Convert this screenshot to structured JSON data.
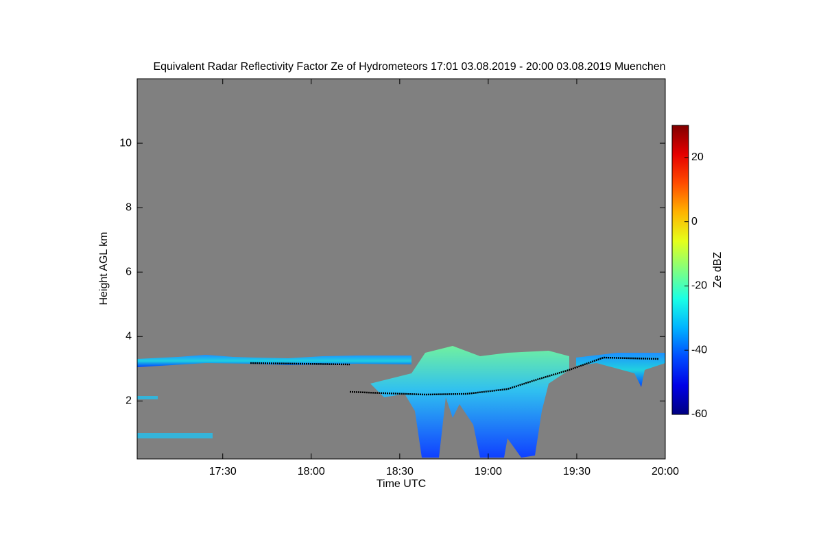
{
  "chart_data": {
    "type": "heatmap",
    "title": "Equivalent Radar Reflectivity Factor Ze of Hydrometeors   17:01 03.08.2019 - 20:00 03.08.2019 Muenchen",
    "x_label": "Time UTC",
    "y_label": "Height AGL km",
    "xlim": [
      17.0167,
      20
    ],
    "xticks": [
      {
        "value": 17.5,
        "label": "17:30"
      },
      {
        "value": 18,
        "label": "18:00"
      },
      {
        "value": 18.5,
        "label": "18:30"
      },
      {
        "value": 19,
        "label": "19:00"
      },
      {
        "value": 19.5,
        "label": "19:30"
      },
      {
        "value": 20,
        "label": "20:00"
      }
    ],
    "ylim": [
      0.2,
      12
    ],
    "yticks": [
      2,
      4,
      6,
      8,
      10
    ],
    "colorbar_label": "Ze dBZ",
    "clim": [
      -60,
      30
    ],
    "cticks": [
      -60,
      -40,
      -20,
      0,
      20
    ],
    "colormap": "jet",
    "background": "#808080"
  }
}
